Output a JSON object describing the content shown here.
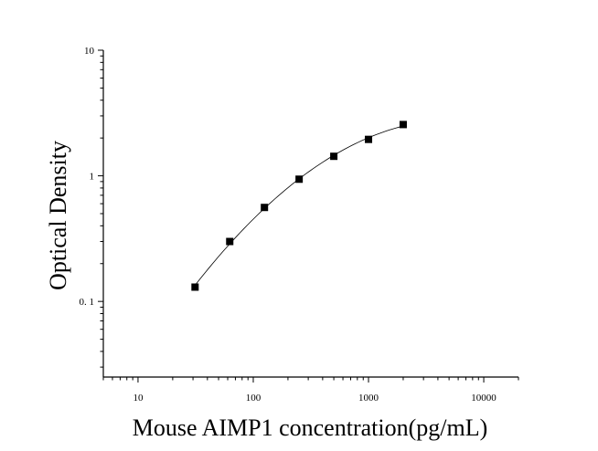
{
  "chart_data": {
    "type": "scatter",
    "title": "",
    "xlabel": "Mouse AIMP1 concentration(pg/mL)",
    "ylabel": "Optical Density",
    "x_scale": "log",
    "y_scale": "log",
    "xlim": [
      5,
      20000
    ],
    "ylim": [
      0.025,
      10
    ],
    "x_ticks": [
      10,
      100,
      1000,
      10000
    ],
    "x_tick_labels": [
      "10",
      "100",
      "1000",
      "10000"
    ],
    "y_ticks": [
      0.1,
      1,
      10
    ],
    "y_tick_labels": [
      "0. 1",
      "1",
      "10"
    ],
    "grid": false,
    "legend": "none",
    "series": [
      {
        "x": [
          31.25,
          62.5,
          125,
          250,
          500,
          1000,
          2000
        ],
        "y": [
          0.13,
          0.3,
          0.56,
          0.94,
          1.43,
          1.95,
          2.56
        ],
        "marker": "square",
        "fit_line": true
      }
    ],
    "colors": {
      "marker": "#000000",
      "line": "#000000",
      "axis": "#000000"
    }
  }
}
